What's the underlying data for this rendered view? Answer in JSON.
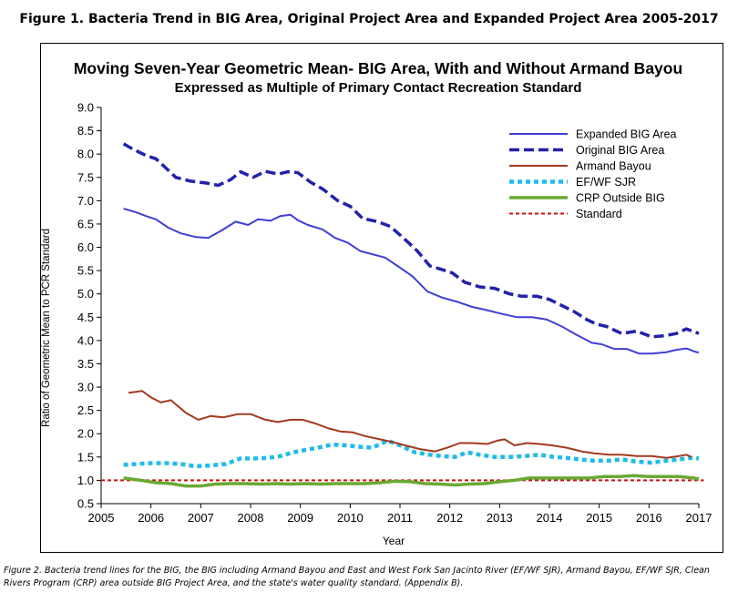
{
  "figure_title": "Figure 1. Bacteria Trend in BIG Area, Original Project Area and Expanded Project Area 2005-2017",
  "caption": "Figure 2. Bacteria trend lines for the BIG, the BIG including Armand Bayou and East and West Fork San Jacinto River (EF/WF SJR), Armand Bayou, EF/WF SJR, Clean Rivers Program (CRP) area outside BIG Project Area, and the state's water quality standard. (Appendix B).",
  "chart_data": {
    "type": "line",
    "title": "Moving Seven-Year Geometric Mean- BIG Area, With and Without Armand Bayou",
    "subtitle": "Expressed as Multiple of Primary Contact Recreation Standard",
    "xlabel": "Year",
    "ylabel": "Ratio of Geometric Mean to PCR Standard",
    "xlim": [
      2005,
      2017
    ],
    "ylim": [
      0.5,
      9.0
    ],
    "xticks": [
      "2005",
      "2006",
      "2007",
      "2008",
      "2009",
      "2010",
      "2011",
      "2012",
      "2013",
      "2014",
      "2015",
      "2016",
      "2017"
    ],
    "yticks": [
      "0.5",
      "1.0",
      "1.5",
      "2.0",
      "2.5",
      "3.0",
      "3.5",
      "4.0",
      "4.5",
      "5.0",
      "5.5",
      "6.0",
      "6.5",
      "7.0",
      "7.5",
      "8.0",
      "8.5",
      "9.0"
    ],
    "grid": false,
    "legend_position": "top-right",
    "series": [
      {
        "name": "Expanded BIG Area",
        "color": "#3f3fd6",
        "style": "solid",
        "x": [
          2005.45,
          2005.7,
          2005.9,
          2006.1,
          2006.35,
          2006.6,
          2006.9,
          2007.15,
          2007.4,
          2007.7,
          2007.95,
          2008.15,
          2008.4,
          2008.6,
          2008.8,
          2008.95,
          2009.15,
          2009.45,
          2009.7,
          2009.95,
          2010.2,
          2010.45,
          2010.7,
          2010.95,
          2011.25,
          2011.55,
          2011.85,
          2012.15,
          2012.45,
          2012.75,
          2013.05,
          2013.35,
          2013.65,
          2013.95,
          2014.25,
          2014.55,
          2014.85,
          2015.05,
          2015.3,
          2015.55,
          2015.8,
          2016.05,
          2016.35,
          2016.55,
          2016.75,
          2016.95,
          2017.0
        ],
        "y": [
          6.83,
          6.75,
          6.67,
          6.6,
          6.42,
          6.3,
          6.22,
          6.2,
          6.35,
          6.55,
          6.48,
          6.6,
          6.57,
          6.67,
          6.7,
          6.58,
          6.48,
          6.38,
          6.2,
          6.1,
          5.92,
          5.85,
          5.78,
          5.6,
          5.38,
          5.05,
          4.92,
          4.83,
          4.72,
          4.65,
          4.57,
          4.5,
          4.5,
          4.45,
          4.3,
          4.12,
          3.95,
          3.92,
          3.82,
          3.82,
          3.72,
          3.72,
          3.75,
          3.8,
          3.83,
          3.75,
          3.75
        ]
      },
      {
        "name": "Original BIG Area",
        "color": "#2222aa",
        "style": "dashed",
        "x": [
          2005.45,
          2005.65,
          2005.9,
          2006.1,
          2006.3,
          2006.5,
          2006.8,
          2007.1,
          2007.35,
          2007.6,
          2007.8,
          2008.05,
          2008.3,
          2008.55,
          2008.75,
          2008.95,
          2009.2,
          2009.45,
          2009.75,
          2010.0,
          2010.25,
          2010.55,
          2010.8,
          2011.05,
          2011.35,
          2011.6,
          2011.85,
          2012.05,
          2012.3,
          2012.6,
          2012.9,
          2013.2,
          2013.45,
          2013.75,
          2014.0,
          2014.25,
          2014.5,
          2014.75,
          2014.95,
          2015.15,
          2015.45,
          2015.75,
          2016.05,
          2016.3,
          2016.55,
          2016.75,
          2017.0
        ],
        "y": [
          8.22,
          8.1,
          7.97,
          7.9,
          7.7,
          7.5,
          7.42,
          7.38,
          7.33,
          7.45,
          7.62,
          7.5,
          7.63,
          7.57,
          7.62,
          7.6,
          7.4,
          7.25,
          7.0,
          6.88,
          6.62,
          6.55,
          6.45,
          6.22,
          5.92,
          5.6,
          5.52,
          5.45,
          5.25,
          5.15,
          5.12,
          5.0,
          4.95,
          4.95,
          4.88,
          4.75,
          4.62,
          4.45,
          4.35,
          4.3,
          4.15,
          4.2,
          4.08,
          4.1,
          4.15,
          4.25,
          4.15
        ]
      },
      {
        "name": "Armand Bayou",
        "color": "#a23a1e",
        "style": "solid",
        "x": [
          2005.55,
          2005.7,
          2005.82,
          2006.0,
          2006.2,
          2006.4,
          2006.7,
          2006.95,
          2007.2,
          2007.45,
          2007.75,
          2008.0,
          2008.3,
          2008.55,
          2008.8,
          2009.05,
          2009.3,
          2009.55,
          2009.8,
          2010.05,
          2010.3,
          2010.6,
          2010.85,
          2011.1,
          2011.4,
          2011.7,
          2011.95,
          2012.2,
          2012.45,
          2012.75,
          2012.95,
          2013.1,
          2013.3,
          2013.55,
          2013.8,
          2014.05,
          2014.35,
          2014.65,
          2014.9,
          2015.2,
          2015.45,
          2015.75,
          2016.05,
          2016.35,
          2016.6,
          2016.75,
          2016.85
        ],
        "y": [
          2.88,
          2.9,
          2.92,
          2.78,
          2.67,
          2.72,
          2.45,
          2.3,
          2.38,
          2.35,
          2.42,
          2.42,
          2.3,
          2.25,
          2.3,
          2.3,
          2.22,
          2.12,
          2.05,
          2.03,
          1.95,
          1.88,
          1.82,
          1.75,
          1.67,
          1.62,
          1.7,
          1.8,
          1.8,
          1.78,
          1.85,
          1.88,
          1.75,
          1.8,
          1.78,
          1.75,
          1.7,
          1.62,
          1.58,
          1.55,
          1.55,
          1.52,
          1.52,
          1.48,
          1.52,
          1.55,
          1.5
        ]
      },
      {
        "name": "EF/WF SJR",
        "color": "#1fbce8",
        "style": "dotted",
        "x": [
          2005.45,
          2005.7,
          2006.0,
          2006.3,
          2006.6,
          2006.9,
          2007.2,
          2007.5,
          2007.8,
          2008.1,
          2008.35,
          2008.6,
          2008.85,
          2009.1,
          2009.35,
          2009.65,
          2009.9,
          2010.2,
          2010.45,
          2010.75,
          2011.0,
          2011.3,
          2011.6,
          2011.85,
          2012.1,
          2012.35,
          2012.6,
          2012.9,
          2013.2,
          2013.5,
          2013.8,
          2014.1,
          2014.35,
          2014.6,
          2014.9,
          2015.2,
          2015.45,
          2015.75,
          2016.05,
          2016.35,
          2016.6,
          2016.85,
          2017.0
        ],
        "y": [
          1.33,
          1.35,
          1.37,
          1.37,
          1.35,
          1.3,
          1.32,
          1.35,
          1.47,
          1.47,
          1.48,
          1.52,
          1.6,
          1.65,
          1.7,
          1.77,
          1.75,
          1.72,
          1.7,
          1.85,
          1.75,
          1.6,
          1.55,
          1.52,
          1.5,
          1.6,
          1.55,
          1.5,
          1.5,
          1.52,
          1.55,
          1.5,
          1.48,
          1.45,
          1.42,
          1.42,
          1.45,
          1.4,
          1.38,
          1.42,
          1.45,
          1.48,
          1.47
        ]
      },
      {
        "name": "CRP Outside BIG",
        "color": "#6aa832",
        "style": "solid-thick",
        "x": [
          2005.45,
          2005.8,
          2006.1,
          2006.4,
          2006.7,
          2007.0,
          2007.3,
          2007.6,
          2007.9,
          2008.2,
          2008.5,
          2008.8,
          2009.1,
          2009.4,
          2009.7,
          2010.0,
          2010.3,
          2010.6,
          2010.9,
          2011.2,
          2011.5,
          2011.8,
          2012.1,
          2012.4,
          2012.7,
          2013.0,
          2013.3,
          2013.6,
          2013.9,
          2014.2,
          2014.5,
          2014.8,
          2015.1,
          2015.4,
          2015.7,
          2016.0,
          2016.3,
          2016.6,
          2016.9,
          2017.0
        ],
        "y": [
          1.05,
          1.0,
          0.95,
          0.93,
          0.88,
          0.88,
          0.92,
          0.93,
          0.93,
          0.92,
          0.93,
          0.92,
          0.93,
          0.92,
          0.93,
          0.93,
          0.93,
          0.95,
          0.98,
          0.97,
          0.93,
          0.92,
          0.9,
          0.92,
          0.93,
          0.97,
          1.0,
          1.05,
          1.05,
          1.05,
          1.05,
          1.05,
          1.08,
          1.08,
          1.1,
          1.08,
          1.08,
          1.08,
          1.05,
          1.03
        ]
      },
      {
        "name": "Standard",
        "color": "#cc1111",
        "style": "dashed-fine",
        "x": [
          2005,
          2017.1
        ],
        "y": [
          1.0,
          1.0
        ]
      }
    ]
  }
}
